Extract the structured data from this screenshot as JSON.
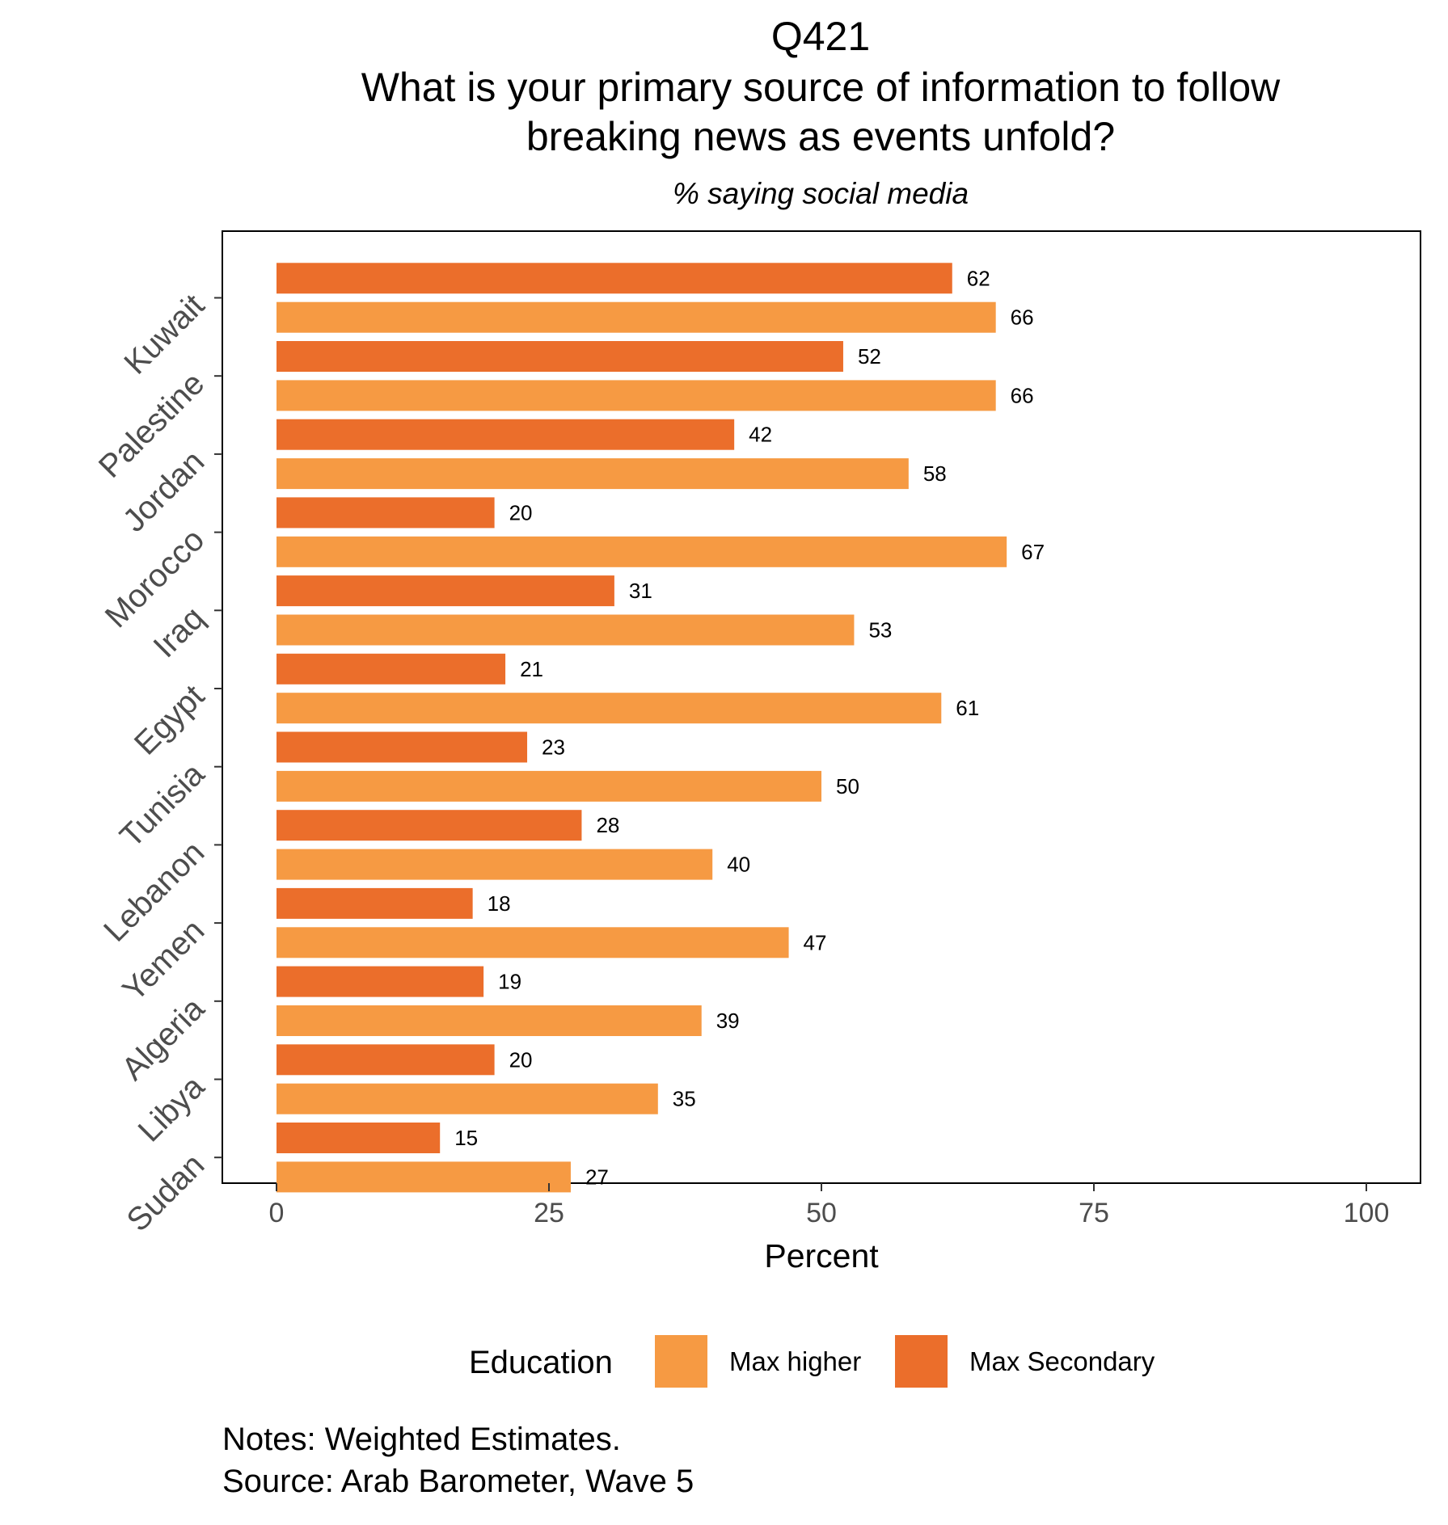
{
  "chart_data": {
    "type": "bar",
    "orientation": "horizontal",
    "title_lines": [
      "Q421",
      "What is your primary source of information to follow",
      "breaking news as events unfold?"
    ],
    "subtitle": "% saying social media",
    "xlabel": "Percent",
    "ylabel": "",
    "xlim": [
      0,
      100
    ],
    "x_ticks": [
      0,
      25,
      50,
      75,
      100
    ],
    "grid": false,
    "categories": [
      "Kuwait",
      "Palestine",
      "Jordan",
      "Morocco",
      "Iraq",
      "Egypt",
      "Tunisia",
      "Lebanon",
      "Yemen",
      "Algeria",
      "Libya",
      "Sudan"
    ],
    "series": [
      {
        "name": "Max Secondary",
        "color": "#eb6e2b",
        "values": [
          62,
          52,
          42,
          20,
          31,
          21,
          23,
          28,
          18,
          19,
          20,
          15
        ]
      },
      {
        "name": "Max higher",
        "color": "#f69a43",
        "values": [
          66,
          66,
          58,
          67,
          53,
          61,
          50,
          40,
          47,
          39,
          35,
          27
        ]
      }
    ],
    "legend": {
      "title": "Education",
      "position": "bottom",
      "entries": [
        {
          "label": "Max higher",
          "color": "#f69a43"
        },
        {
          "label": "Max Secondary",
          "color": "#eb6e2b"
        }
      ]
    },
    "notes": [
      "Notes: Weighted Estimates.",
      "Source: Arab Barometer, Wave 5"
    ]
  }
}
